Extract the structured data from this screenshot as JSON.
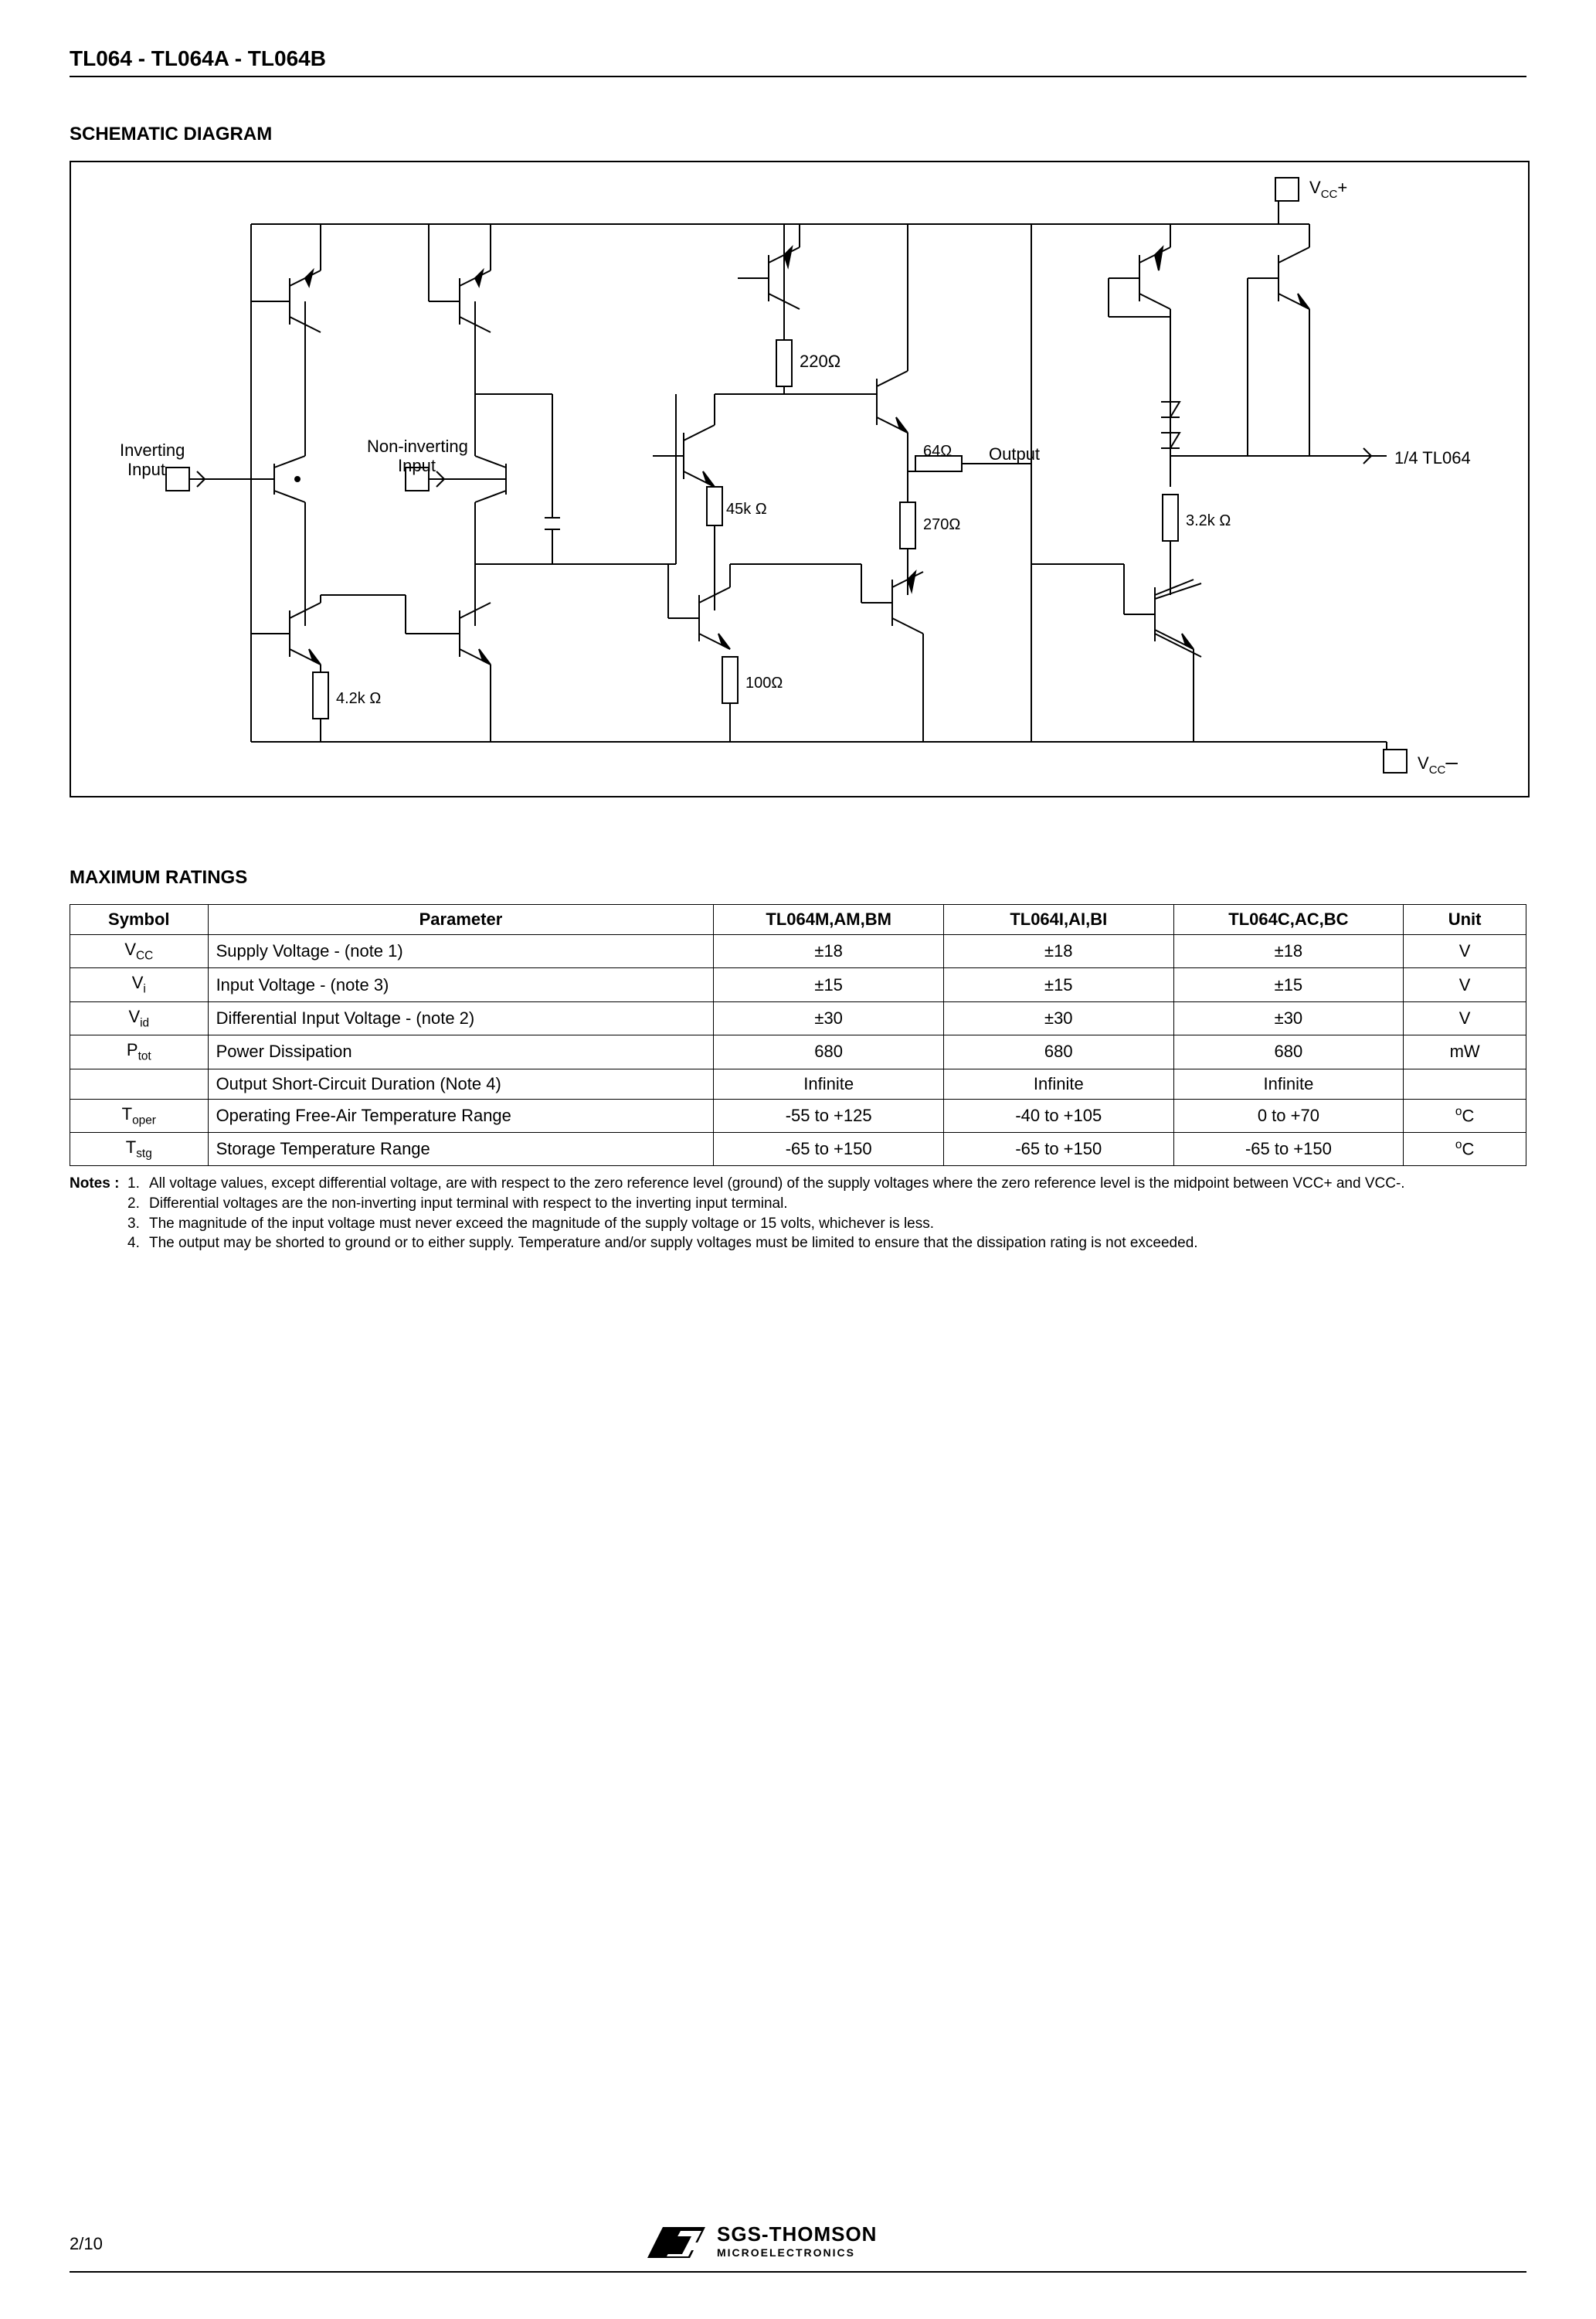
{
  "title": "TL064 - TL064A - TL064B",
  "schematic": {
    "heading": "SCHEMATIC DIAGRAM",
    "labels": {
      "vcc_plus": "V",
      "vcc_plus_sub": "CC",
      "vcc_plus_sign": "+",
      "vcc_minus": "V",
      "vcc_minus_sub": "CC",
      "vcc_minus_sign": "–",
      "inv": "Inverting",
      "inv2": "Input",
      "ninv": "Non-inverting",
      "ninv2": "Input",
      "out": "Output",
      "part": "1/4 TL064",
      "r220": "220Ω",
      "r64": "64Ω",
      "r45k": "45k Ω",
      "r270": "270Ω",
      "r32k": "3.2k Ω",
      "r42k": "4.2k Ω",
      "r100": "100Ω"
    }
  },
  "ratings": {
    "heading": "MAXIMUM RATINGS",
    "columns": [
      "Symbol",
      "Parameter",
      "TL064M,AM,BM",
      "TL064I,AI,BI",
      "TL064C,AC,BC",
      "Unit"
    ],
    "rows": [
      {
        "sym": "V",
        "sub": "CC",
        "param": "Supply Voltage - (note 1)",
        "v1": "±18",
        "v2": "±18",
        "v3": "±18",
        "unit": "V"
      },
      {
        "sym": "V",
        "sub": "i",
        "param": "Input Voltage - (note 3)",
        "v1": "±15",
        "v2": "±15",
        "v3": "±15",
        "unit": "V"
      },
      {
        "sym": "V",
        "sub": "id",
        "param": "Differential Input Voltage - (note 2)",
        "v1": "±30",
        "v2": "±30",
        "v3": "±30",
        "unit": "V"
      },
      {
        "sym": "P",
        "sub": "tot",
        "param": "Power Dissipation",
        "v1": "680",
        "v2": "680",
        "v3": "680",
        "unit": "mW"
      },
      {
        "sym": "",
        "sub": "",
        "param": "Output Short-Circuit Duration (Note 4)",
        "v1": "Infinite",
        "v2": "Infinite",
        "v3": "Infinite",
        "unit": ""
      },
      {
        "sym": "T",
        "sub": "oper",
        "param": "Operating Free-Air Temperature Range",
        "v1": "-55 to +125",
        "v2": "-40 to +105",
        "v3": "0 to +70",
        "unit": "°C",
        "degc": true
      },
      {
        "sym": "T",
        "sub": "stg",
        "param": "Storage Temperature Range",
        "v1": "-65 to +150",
        "v2": "-65 to +150",
        "v3": "-65 to +150",
        "unit": "°C",
        "degc": true
      }
    ],
    "notes_label": "Notes :",
    "notes": [
      "All voltage values, except differential voltage, are with respect to the zero reference level (ground) of the supply voltages where the zero reference level is the midpoint between VCC+ and VCC-.",
      "Differential voltages are the non-inverting input terminal with respect to the inverting input terminal.",
      "The magnitude of the input voltage must never exceed the magnitude of the supply voltage or 15 volts, whichever is less.",
      "The output may be shorted to ground or to either supply. Temperature and/or supply voltages must be limited to ensure that the dissipation rating is not exceeded."
    ]
  },
  "footer": {
    "page": "2/10",
    "brand1": "SGS-THOMSON",
    "brand2": "MICROELECTRONICS"
  }
}
